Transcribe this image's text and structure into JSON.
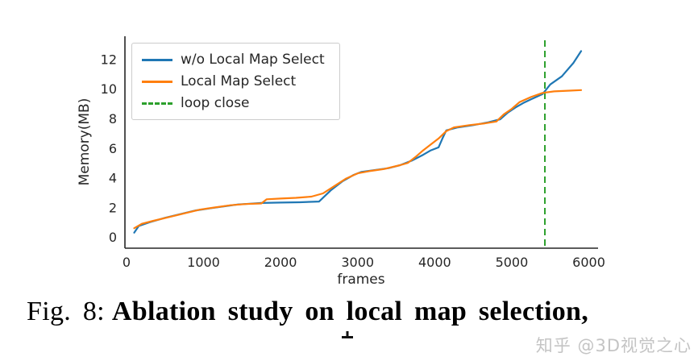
{
  "figure": {
    "caption_prefix": "Fig. 8:",
    "caption_text": "Ablation study on local map selection,"
  },
  "watermark": "知乎 @3D视觉之心",
  "chart_data": {
    "type": "line",
    "title": "",
    "xlabel": "frames",
    "ylabel": "Memory(MB)",
    "xlim": [
      -20,
      6120
    ],
    "ylim": [
      -0.7,
      13.6
    ],
    "x_ticks": [
      0,
      1000,
      2000,
      3000,
      4000,
      5000,
      6000
    ],
    "y_ticks": [
      0,
      2,
      4,
      6,
      8,
      10,
      12
    ],
    "grid": false,
    "legend_position": "upper-left",
    "axis_color": "#262626",
    "series": [
      {
        "name": "w/o Local Map Select",
        "color": "#1f77b4",
        "style": "solid",
        "points": [
          [
            100,
            0.35
          ],
          [
            160,
            0.8
          ],
          [
            300,
            1.05
          ],
          [
            500,
            1.35
          ],
          [
            700,
            1.6
          ],
          [
            900,
            1.85
          ],
          [
            1100,
            2.0
          ],
          [
            1300,
            2.15
          ],
          [
            1450,
            2.25
          ],
          [
            1600,
            2.3
          ],
          [
            1750,
            2.35
          ],
          [
            2000,
            2.38
          ],
          [
            2250,
            2.4
          ],
          [
            2500,
            2.45
          ],
          [
            2650,
            3.2
          ],
          [
            2800,
            3.8
          ],
          [
            2950,
            4.25
          ],
          [
            3050,
            4.45
          ],
          [
            3200,
            4.55
          ],
          [
            3400,
            4.7
          ],
          [
            3550,
            4.9
          ],
          [
            3700,
            5.2
          ],
          [
            3850,
            5.6
          ],
          [
            3950,
            5.9
          ],
          [
            4050,
            6.1
          ],
          [
            4100,
            6.7
          ],
          [
            4150,
            7.25
          ],
          [
            4300,
            7.45
          ],
          [
            4500,
            7.6
          ],
          [
            4700,
            7.8
          ],
          [
            4850,
            8.0
          ],
          [
            4950,
            8.45
          ],
          [
            5050,
            8.8
          ],
          [
            5150,
            9.1
          ],
          [
            5250,
            9.35
          ],
          [
            5400,
            9.7
          ],
          [
            5500,
            10.35
          ],
          [
            5650,
            10.9
          ],
          [
            5800,
            11.8
          ],
          [
            5900,
            12.6
          ]
        ]
      },
      {
        "name": "Local Map Select",
        "color": "#ff7f0e",
        "style": "solid",
        "points": [
          [
            100,
            0.65
          ],
          [
            200,
            0.95
          ],
          [
            350,
            1.15
          ],
          [
            550,
            1.4
          ],
          [
            750,
            1.65
          ],
          [
            950,
            1.9
          ],
          [
            1150,
            2.05
          ],
          [
            1350,
            2.2
          ],
          [
            1550,
            2.28
          ],
          [
            1750,
            2.32
          ],
          [
            1820,
            2.6
          ],
          [
            2000,
            2.65
          ],
          [
            2200,
            2.7
          ],
          [
            2400,
            2.78
          ],
          [
            2550,
            3.0
          ],
          [
            2700,
            3.5
          ],
          [
            2850,
            4.0
          ],
          [
            3000,
            4.35
          ],
          [
            3150,
            4.5
          ],
          [
            3350,
            4.65
          ],
          [
            3550,
            4.9
          ],
          [
            3650,
            5.05
          ],
          [
            3750,
            5.45
          ],
          [
            3850,
            5.9
          ],
          [
            3950,
            6.3
          ],
          [
            4050,
            6.7
          ],
          [
            4150,
            7.2
          ],
          [
            4250,
            7.45
          ],
          [
            4450,
            7.6
          ],
          [
            4650,
            7.72
          ],
          [
            4800,
            7.85
          ],
          [
            4900,
            8.35
          ],
          [
            5000,
            8.7
          ],
          [
            5100,
            9.15
          ],
          [
            5250,
            9.5
          ],
          [
            5400,
            9.78
          ],
          [
            5550,
            9.88
          ],
          [
            5750,
            9.93
          ],
          [
            5900,
            9.97
          ]
        ]
      },
      {
        "name": "loop close",
        "color": "#2ca02c",
        "style": "dashed",
        "vline_x": 5430
      }
    ]
  }
}
